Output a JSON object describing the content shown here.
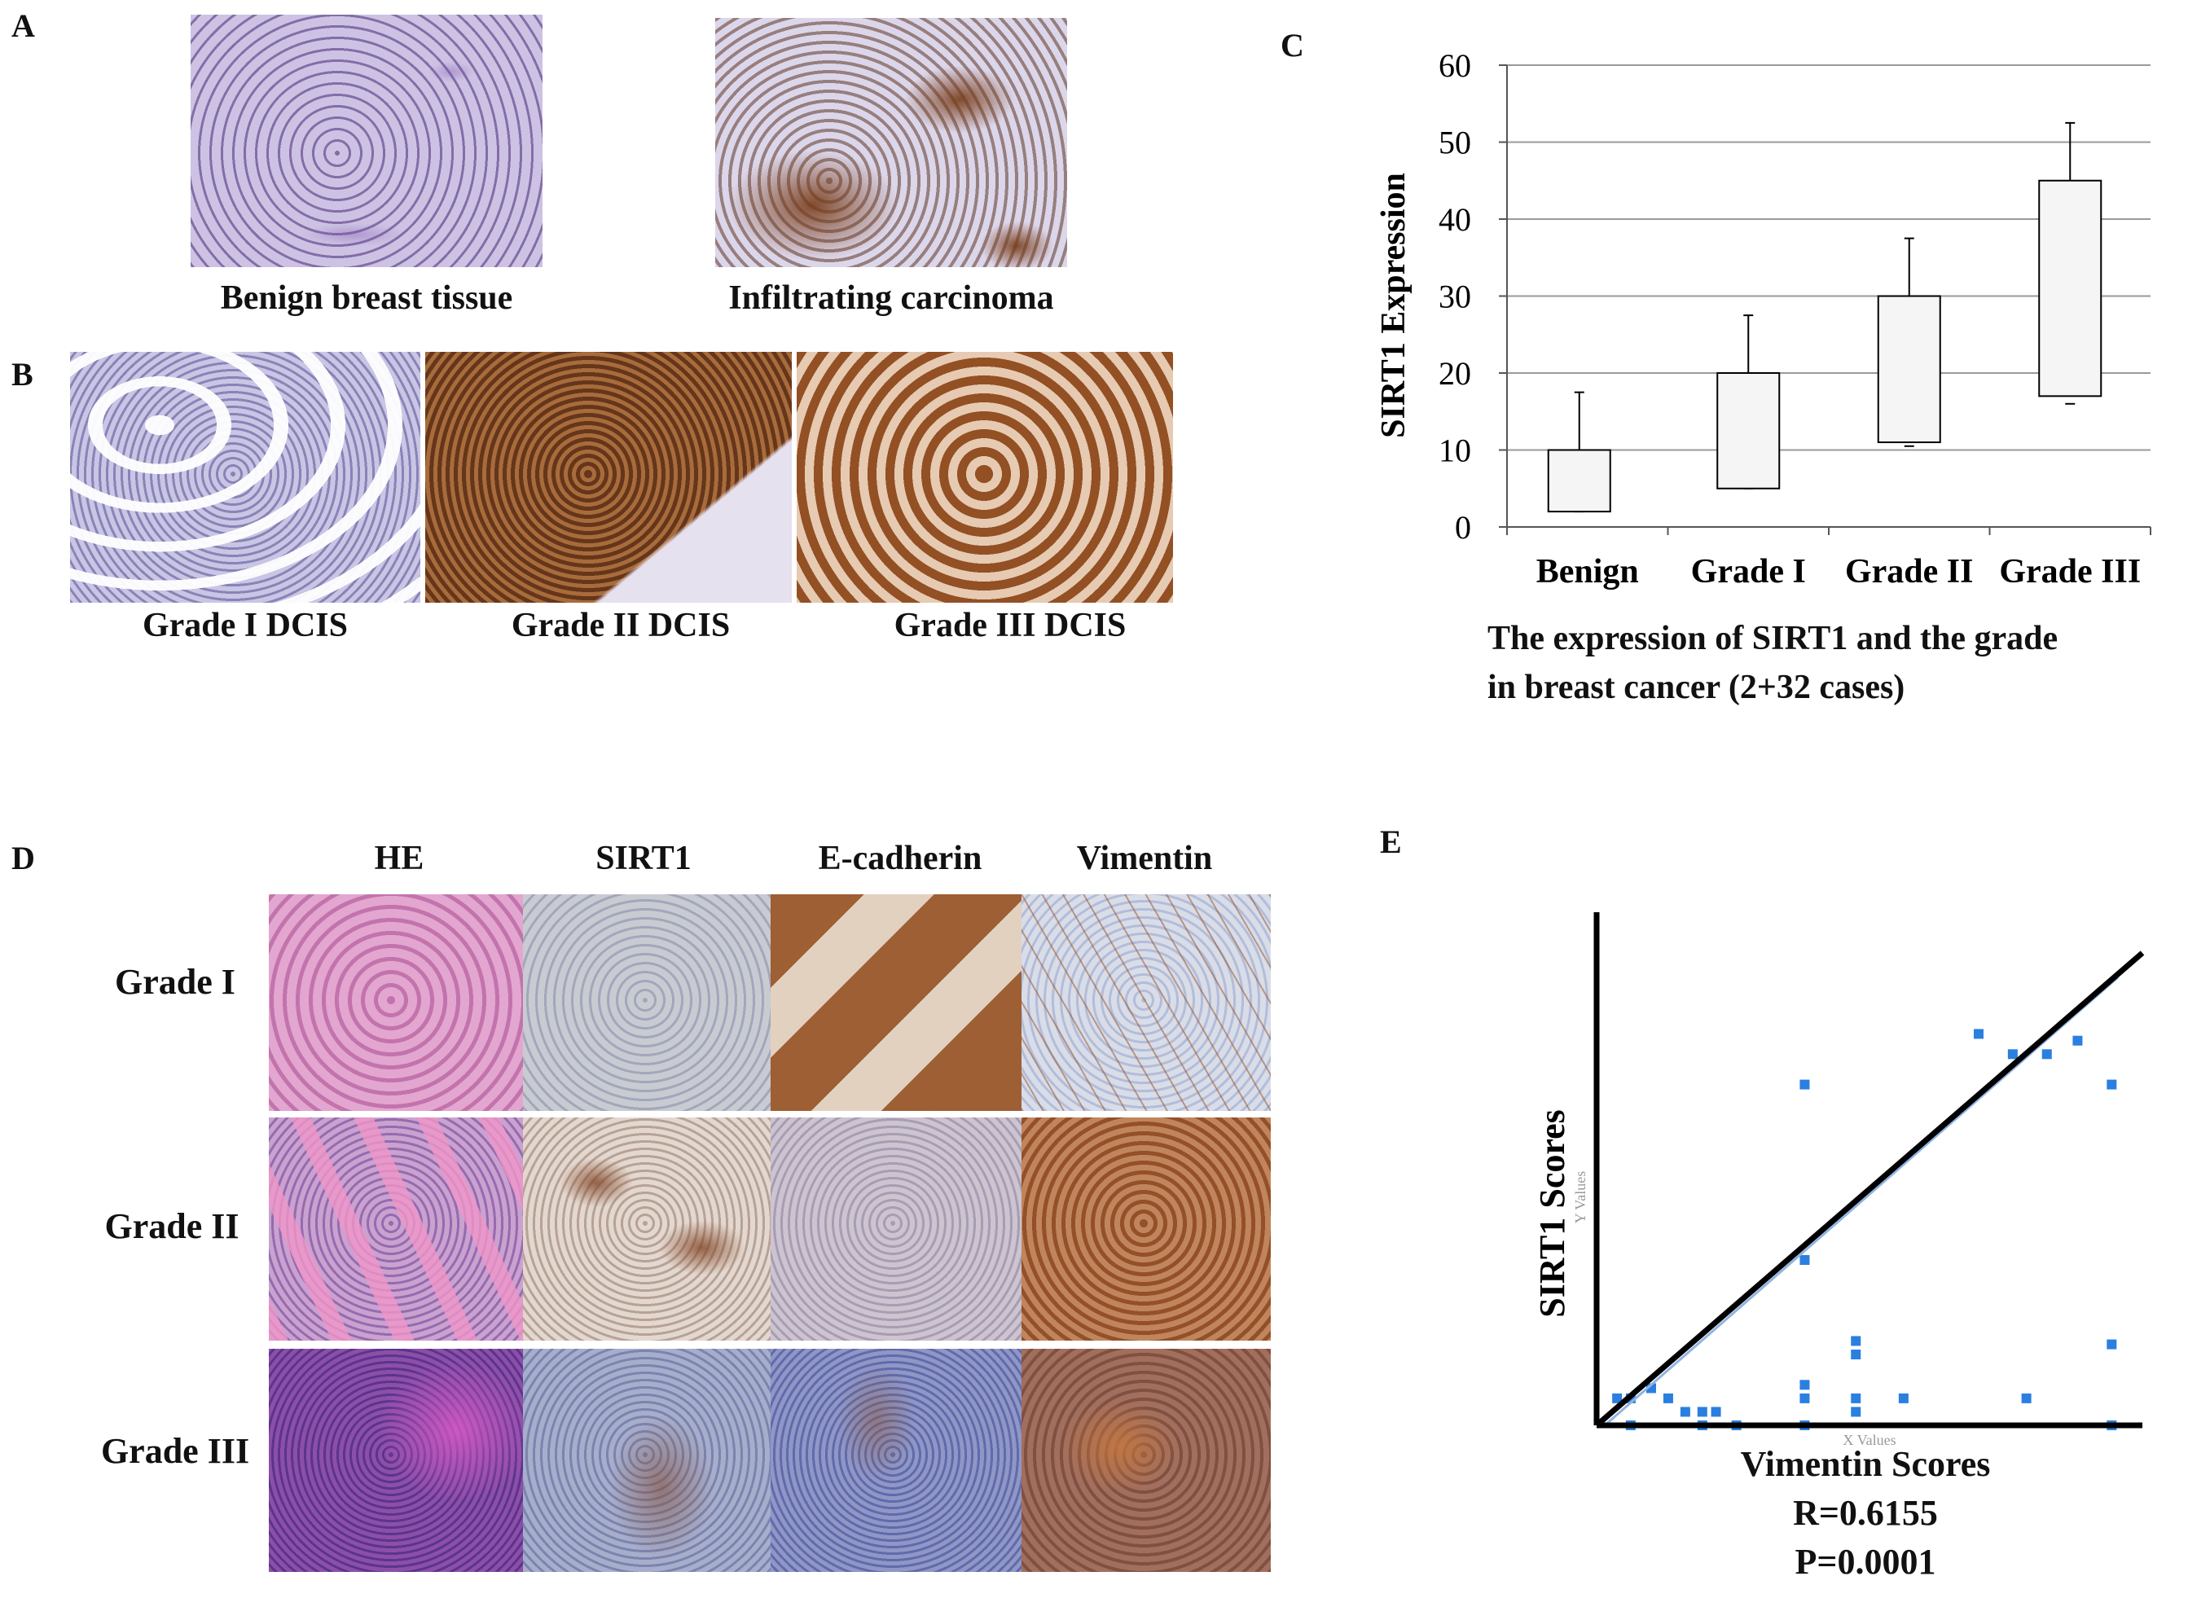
{
  "panels": {
    "A": {
      "letter": "A",
      "images": [
        {
          "caption": "Benign breast tissue",
          "stain": "light-purple"
        },
        {
          "caption": "Infiltrating carcinoma",
          "stain": "brown"
        }
      ]
    },
    "B": {
      "letter": "B",
      "images": [
        {
          "caption": "Grade I DCIS",
          "stain": "blue"
        },
        {
          "caption": "Grade II DCIS",
          "stain": "brown"
        },
        {
          "caption": "Grade III DCIS",
          "stain": "brown"
        }
      ]
    },
    "C": {
      "letter": "C",
      "caption_line1": "The expression of  SIRT1 and the grade",
      "caption_line2": "in breast cancer (2+32 cases)"
    },
    "D": {
      "letter": "D",
      "columns": [
        "HE",
        "SIRT1",
        "E-cadherin",
        "Vimentin"
      ],
      "rows": [
        "Grade I",
        "Grade II",
        "Grade III"
      ]
    },
    "E": {
      "letter": "E",
      "r_text": "R=0.6155",
      "p_text": "P=0.0001"
    }
  },
  "colors": {
    "he_pink": "#d98cc0",
    "he_purple": "#9a3fa3",
    "ihc_brown": "#8a4a22",
    "ihc_blue": "#9fb3d6",
    "box_fill": "#f5f5f5",
    "scatter_point": "#2a7fe0",
    "trend_line": "#000000"
  },
  "chart_data": [
    {
      "type": "box",
      "title": "",
      "xlabel": "",
      "ylabel": "SIRT1 Expression",
      "ylim": [
        0,
        60
      ],
      "yticks": [
        0,
        10,
        20,
        30,
        40,
        50,
        60
      ],
      "grid": true,
      "categories": [
        "Benign",
        "Grade I",
        "Grade II",
        "Grade III"
      ],
      "boxes": [
        {
          "whisker_low": 2,
          "q1": 2,
          "q3": 10,
          "whisker_high": 17.5
        },
        {
          "whisker_low": 5,
          "q1": 5,
          "q3": 20,
          "whisker_high": 27.5
        },
        {
          "whisker_low": 10.5,
          "q1": 11,
          "q3": 30,
          "whisker_high": 37.5
        },
        {
          "whisker_low": 16,
          "q1": 17,
          "q3": 45,
          "whisker_high": 52.5
        }
      ]
    },
    {
      "type": "scatter",
      "xlabel": "Vimentin Scores",
      "ylabel": "SIRT1 Scores",
      "faint_xlabel": "X Values",
      "faint_ylabel": "Y Values",
      "xlim": [
        0,
        16
      ],
      "ylim": [
        0,
        14
      ],
      "points": [
        {
          "x": 0.6,
          "y": 0.8
        },
        {
          "x": 1.0,
          "y": 0.8
        },
        {
          "x": 1.6,
          "y": 1.1
        },
        {
          "x": 2.1,
          "y": 0.8
        },
        {
          "x": 2.6,
          "y": 0.4
        },
        {
          "x": 3.1,
          "y": 0.4
        },
        {
          "x": 3.5,
          "y": 0.4
        },
        {
          "x": 1.0,
          "y": 0.0
        },
        {
          "x": 3.1,
          "y": 0.0
        },
        {
          "x": 4.1,
          "y": 0.0
        },
        {
          "x": 6.1,
          "y": 1.2
        },
        {
          "x": 6.1,
          "y": 0.8
        },
        {
          "x": 6.1,
          "y": 0.0
        },
        {
          "x": 7.6,
          "y": 0.8
        },
        {
          "x": 7.6,
          "y": 0.4
        },
        {
          "x": 7.6,
          "y": 2.1
        },
        {
          "x": 7.6,
          "y": 2.5
        },
        {
          "x": 9.0,
          "y": 0.8
        },
        {
          "x": 12.6,
          "y": 0.8
        },
        {
          "x": 6.1,
          "y": 4.9
        },
        {
          "x": 6.1,
          "y": 10.1
        },
        {
          "x": 11.2,
          "y": 11.6
        },
        {
          "x": 12.2,
          "y": 11.0
        },
        {
          "x": 13.2,
          "y": 11.0
        },
        {
          "x": 14.1,
          "y": 11.4
        },
        {
          "x": 15.1,
          "y": 10.1
        },
        {
          "x": 15.1,
          "y": 2.4
        },
        {
          "x": 15.1,
          "y": 0.0
        }
      ],
      "trend_line": {
        "from": [
          0,
          0
        ],
        "to": [
          16,
          14
        ]
      }
    }
  ]
}
